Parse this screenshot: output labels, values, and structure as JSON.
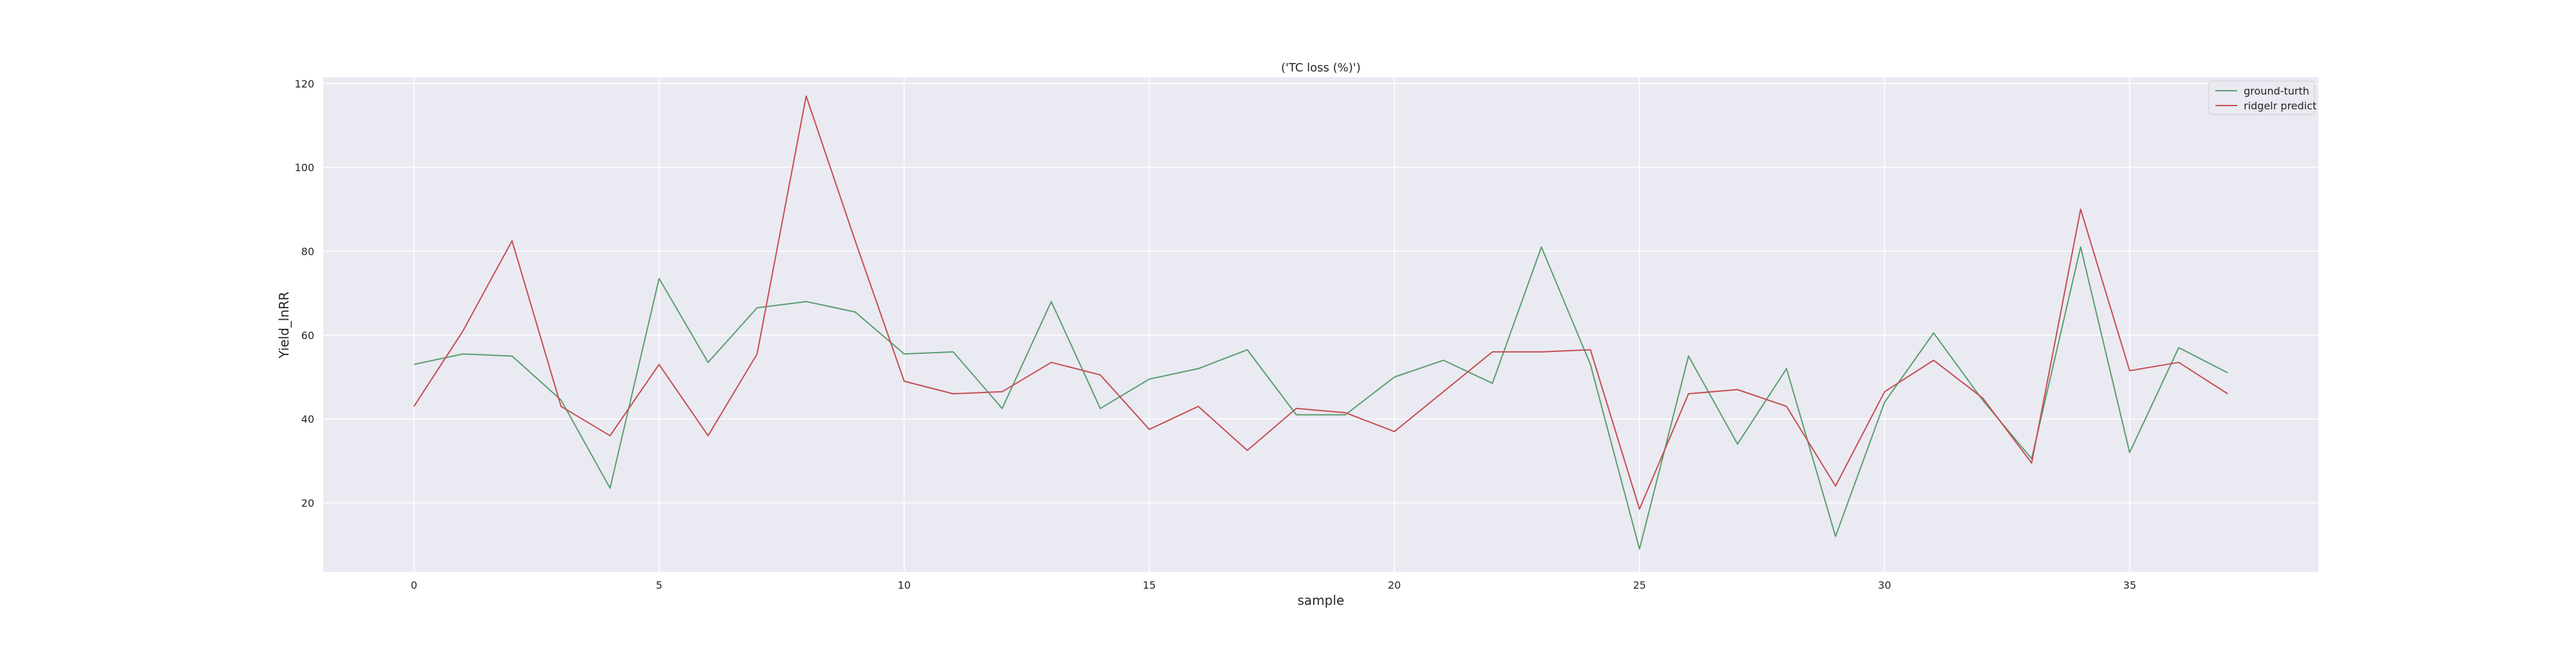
{
  "chart_data": {
    "type": "line",
    "title": "('TC loss (%)')",
    "xlabel": "sample",
    "ylabel": "Yield_lnRR",
    "xlim": [
      -1.85,
      38.85
    ],
    "ylim": [
      3.5,
      121.5
    ],
    "x_ticks": [
      0,
      5,
      10,
      15,
      20,
      25,
      30,
      35
    ],
    "y_ticks": [
      20,
      40,
      60,
      80,
      100,
      120
    ],
    "grid": true,
    "legend_position": "top-right",
    "x": [
      0,
      1,
      2,
      3,
      4,
      5,
      6,
      7,
      8,
      9,
      10,
      11,
      12,
      13,
      14,
      15,
      16,
      17,
      18,
      19,
      20,
      21,
      22,
      23,
      24,
      25,
      26,
      27,
      28,
      29,
      30,
      31,
      32,
      33,
      34,
      35,
      36,
      37
    ],
    "series": [
      {
        "name": "ground-turth",
        "color": "#5a9e6f",
        "values": [
          53.0,
          55.5,
          55.0,
          44.5,
          23.5,
          73.5,
          53.5,
          66.5,
          68.0,
          65.5,
          55.5,
          56.0,
          42.5,
          68.0,
          42.5,
          49.5,
          52.0,
          56.5,
          41.0,
          41.0,
          50.0,
          54.0,
          48.5,
          81.0,
          53.0,
          9.0,
          55.0,
          34.0,
          52.0,
          12.0,
          44.0,
          60.5,
          44.5,
          30.5,
          81.0,
          32.0,
          57.0,
          51.0
        ]
      },
      {
        "name": "ridgelr predict",
        "color": "#c44e52",
        "values": [
          43.0,
          61.0,
          82.5,
          43.0,
          36.0,
          53.0,
          36.0,
          55.5,
          117.0,
          82.5,
          49.0,
          46.0,
          46.5,
          53.5,
          50.5,
          37.5,
          43.0,
          32.5,
          42.5,
          41.5,
          37.0,
          46.5,
          56.0,
          56.0,
          56.5,
          18.5,
          46.0,
          47.0,
          43.0,
          24.0,
          46.5,
          54.0,
          45.0,
          29.5,
          90.0,
          51.5,
          53.5,
          46.0
        ]
      }
    ]
  }
}
